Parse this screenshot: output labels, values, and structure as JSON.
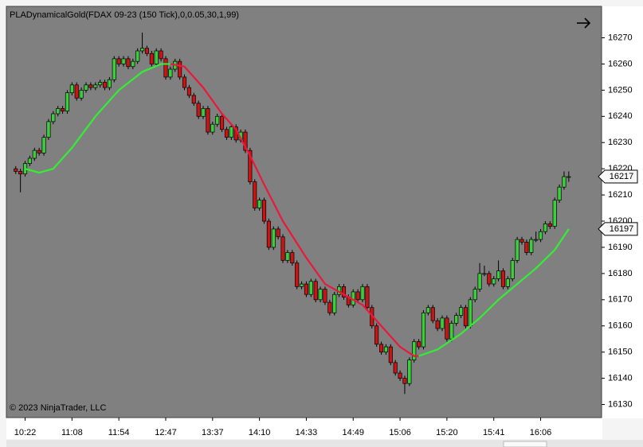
{
  "chart_data": {
    "type": "candlestick",
    "title": "PLADynamicalGold(FDAX 09-23 (150 Tick),0,0.05,30,1,99)",
    "copyright": "© 2023 NinjaTrader, LLC",
    "up_color": "#3ccf3c",
    "down_color": "#cc1414",
    "ohlc": [
      [
        16220,
        16221,
        16218,
        16219
      ],
      [
        16219,
        16220,
        16211,
        16218
      ],
      [
        16218,
        16223,
        16217,
        16222
      ],
      [
        16222,
        16225,
        16221,
        16224
      ],
      [
        16224,
        16228,
        16223,
        16227
      ],
      [
        16227,
        16228,
        16225,
        16226
      ],
      [
        16226,
        16233,
        16225,
        16232
      ],
      [
        16232,
        16239,
        16231,
        16238
      ],
      [
        16238,
        16242,
        16237,
        16241
      ],
      [
        16241,
        16244,
        16240,
        16243
      ],
      [
        16243,
        16244,
        16241,
        16242
      ],
      [
        16242,
        16250,
        16241,
        16249
      ],
      [
        16249,
        16253,
        16248,
        16252
      ],
      [
        16252,
        16253,
        16246,
        16247
      ],
      [
        16247,
        16251,
        16246,
        16250
      ],
      [
        16250,
        16253,
        16249,
        16252
      ],
      [
        16252,
        16253,
        16250,
        16251
      ],
      [
        16251,
        16253,
        16250,
        16252
      ],
      [
        16252,
        16254,
        16251,
        16253
      ],
      [
        16253,
        16254,
        16250,
        16251
      ],
      [
        16251,
        16255,
        16250,
        16254
      ],
      [
        16254,
        16263,
        16253,
        16262
      ],
      [
        16262,
        16263,
        16259,
        16260
      ],
      [
        16260,
        16263,
        16259,
        16262
      ],
      [
        16262,
        16263,
        16258,
        16259
      ],
      [
        16259,
        16262,
        16258,
        16261
      ],
      [
        16261,
        16266,
        16260,
        16265
      ],
      [
        16265,
        16272,
        16264,
        16266
      ],
      [
        16266,
        16267,
        16263,
        16264
      ],
      [
        16264,
        16265,
        16259,
        16260
      ],
      [
        16260,
        16266,
        16259,
        16265
      ],
      [
        16265,
        16266,
        16261,
        16262
      ],
      [
        16262,
        16263,
        16254,
        16255
      ],
      [
        16255,
        16259,
        16254,
        16258
      ],
      [
        16258,
        16262,
        16257,
        16261
      ],
      [
        16261,
        16262,
        16254,
        16255
      ],
      [
        16255,
        16256,
        16250,
        16251
      ],
      [
        16251,
        16252,
        16247,
        16248
      ],
      [
        16248,
        16249,
        16244,
        16245
      ],
      [
        16245,
        16246,
        16239,
        16240
      ],
      [
        16240,
        16244,
        16239,
        16243
      ],
      [
        16243,
        16244,
        16233,
        16234
      ],
      [
        16234,
        16238,
        16233,
        16237
      ],
      [
        16237,
        16241,
        16236,
        16240
      ],
      [
        16240,
        16241,
        16234,
        16235
      ],
      [
        16235,
        16236,
        16231,
        16232
      ],
      [
        16232,
        16237,
        16231,
        16236
      ],
      [
        16236,
        16237,
        16230,
        16231
      ],
      [
        16231,
        16235,
        16230,
        16234
      ],
      [
        16234,
        16235,
        16226,
        16227
      ],
      [
        16227,
        16228,
        16214,
        16215
      ],
      [
        16215,
        16216,
        16204,
        16205
      ],
      [
        16205,
        16209,
        16204,
        16208
      ],
      [
        16208,
        16209,
        16199,
        16200
      ],
      [
        16200,
        16201,
        16189,
        16190
      ],
      [
        16190,
        16198,
        16189,
        16197
      ],
      [
        16197,
        16198,
        16193,
        16194
      ],
      [
        16194,
        16195,
        16184,
        16185
      ],
      [
        16185,
        16189,
        16184,
        16188
      ],
      [
        16188,
        16189,
        16183,
        16184
      ],
      [
        16184,
        16185,
        16174,
        16175
      ],
      [
        16175,
        16177,
        16174,
        16176
      ],
      [
        16176,
        16177,
        16171,
        16172
      ],
      [
        16172,
        16178,
        16171,
        16177
      ],
      [
        16177,
        16178,
        16169,
        16170
      ],
      [
        16170,
        16175,
        16169,
        16174
      ],
      [
        16174,
        16175,
        16168,
        16169
      ],
      [
        16169,
        16170,
        16164,
        16165
      ],
      [
        16165,
        16173,
        16164,
        16172
      ],
      [
        16172,
        16176,
        16171,
        16175
      ],
      [
        16175,
        16176,
        16170,
        16171
      ],
      [
        16171,
        16172,
        16167,
        16168
      ],
      [
        16168,
        16174,
        16167,
        16173
      ],
      [
        16173,
        16174,
        16169,
        16170
      ],
      [
        16170,
        16176,
        16169,
        16175
      ],
      [
        16175,
        16176,
        16166,
        16167
      ],
      [
        16167,
        16168,
        16159,
        16160
      ],
      [
        16160,
        16161,
        16152,
        16153
      ],
      [
        16153,
        16154,
        16149,
        16150
      ],
      [
        16150,
        16153,
        16149,
        16152
      ],
      [
        16152,
        16153,
        16145,
        16146
      ],
      [
        16146,
        16147,
        16141,
        16142
      ],
      [
        16142,
        16143,
        16139,
        16140
      ],
      [
        16140,
        16141,
        16134,
        16138
      ],
      [
        16138,
        16148,
        16137,
        16147
      ],
      [
        16147,
        16155,
        16146,
        16154
      ],
      [
        16154,
        16155,
        16151,
        16152
      ],
      [
        16152,
        16166,
        16151,
        16165
      ],
      [
        16165,
        16168,
        16164,
        16167
      ],
      [
        16167,
        16168,
        16161,
        16162
      ],
      [
        16162,
        16163,
        16158,
        16159
      ],
      [
        16159,
        16164,
        16158,
        16163
      ],
      [
        16163,
        16164,
        16154,
        16155
      ],
      [
        16155,
        16162,
        16154,
        16161
      ],
      [
        16161,
        16165,
        16160,
        16164
      ],
      [
        16164,
        16168,
        16163,
        16167
      ],
      [
        16167,
        16168,
        16159,
        16160
      ],
      [
        16160,
        16171,
        16159,
        16170
      ],
      [
        16170,
        16175,
        16169,
        16174
      ],
      [
        16174,
        16184,
        16173,
        16180
      ],
      [
        16180,
        16183,
        16179,
        16180
      ],
      [
        16180,
        16181,
        16175,
        16176
      ],
      [
        16176,
        16179,
        16175,
        16178
      ],
      [
        16178,
        16185,
        16177,
        16181
      ],
      [
        16181,
        16182,
        16174,
        16175
      ],
      [
        16175,
        16179,
        16174,
        16178
      ],
      [
        16178,
        16186,
        16177,
        16185
      ],
      [
        16185,
        16194,
        16184,
        16193
      ],
      [
        16193,
        16194,
        16191,
        16192
      ],
      [
        16192,
        16193,
        16187,
        16188
      ],
      [
        16188,
        16194,
        16187,
        16193
      ],
      [
        16193,
        16196,
        16192,
        16193
      ],
      [
        16193,
        16197,
        16192,
        16196
      ],
      [
        16196,
        16200,
        16195,
        16199
      ],
      [
        16199,
        16200,
        16197,
        16198
      ],
      [
        16198,
        16209,
        16197,
        16208
      ],
      [
        16208,
        16214,
        16207,
        16213
      ],
      [
        16213,
        16219,
        16212,
        16217
      ],
      [
        16217,
        16219,
        16215,
        16217
      ]
    ],
    "series": [
      {
        "color": "#33ee33",
        "x": [
          2,
          5,
          8,
          12,
          17,
          22,
          27,
          31,
          33
        ],
        "values": [
          16220,
          16218.5,
          16220,
          16228,
          16240,
          16250,
          16257,
          16260,
          16260
        ]
      },
      {
        "color": "#e8193c",
        "x": [
          33,
          36,
          40,
          44,
          47,
          50,
          53,
          57,
          62,
          66,
          70,
          74,
          78,
          82,
          85,
          86
        ],
        "values": [
          16260,
          16259,
          16251,
          16241,
          16235,
          16225,
          16214,
          16200,
          16186,
          16176,
          16172,
          16168,
          16160,
          16152,
          16148.5,
          16148.5
        ]
      },
      {
        "color": "#33ee33",
        "x": [
          86,
          90,
          95,
          99,
          103,
          107,
          111,
          115,
          118
        ],
        "values": [
          16148.5,
          16151,
          16157,
          16163,
          16170,
          16176,
          16182,
          16189,
          16197
        ]
      }
    ],
    "xlim": [
      -2,
      125
    ],
    "xticks": [
      {
        "value": 2,
        "label": "10:22"
      },
      {
        "value": 12,
        "label": "11:08"
      },
      {
        "value": 22,
        "label": "11:54"
      },
      {
        "value": 32,
        "label": "12:47"
      },
      {
        "value": 42,
        "label": "13:37"
      },
      {
        "value": 52,
        "label": "14:10"
      },
      {
        "value": 62,
        "label": "14:33"
      },
      {
        "value": 72,
        "label": "14:49"
      },
      {
        "value": 82,
        "label": "15:06"
      },
      {
        "value": 92,
        "label": "15:20"
      },
      {
        "value": 102,
        "label": "15:41"
      },
      {
        "value": 112,
        "label": "16:06"
      }
    ],
    "ylim": [
      16125,
      16282
    ],
    "yticks": [
      16130,
      16140,
      16150,
      16160,
      16170,
      16180,
      16190,
      16200,
      16210,
      16220,
      16230,
      16240,
      16250,
      16260,
      16270
    ],
    "last_price": 16217,
    "indicator_last": 16197
  }
}
